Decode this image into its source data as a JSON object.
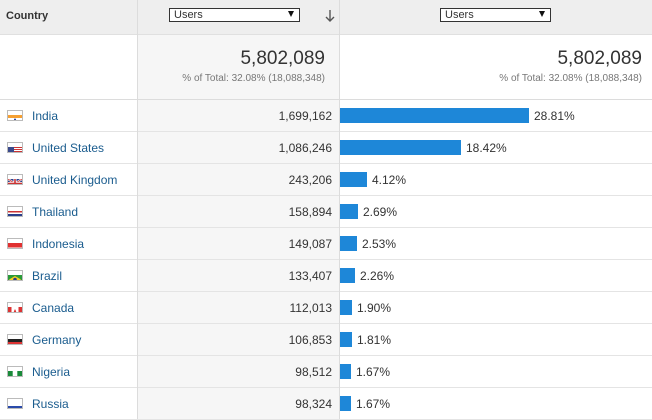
{
  "header": {
    "country_label": "Country",
    "primary_metric": "Users",
    "secondary_metric": "Users"
  },
  "totals": {
    "value": "5,802,089",
    "subtext": "% of Total: 32.08% (18,088,348)"
  },
  "rows": [
    {
      "country": "India",
      "users": "1,699,162",
      "percent": "28.81%",
      "share": 28.81,
      "flag": "india-flag-icon"
    },
    {
      "country": "United States",
      "users": "1,086,246",
      "percent": "18.42%",
      "share": 18.42,
      "flag": "us-flag-icon"
    },
    {
      "country": "United Kingdom",
      "users": "243,206",
      "percent": "4.12%",
      "share": 4.12,
      "flag": "uk-flag-icon"
    },
    {
      "country": "Thailand",
      "users": "158,894",
      "percent": "2.69%",
      "share": 2.69,
      "flag": "thailand-flag-icon"
    },
    {
      "country": "Indonesia",
      "users": "149,087",
      "percent": "2.53%",
      "share": 2.53,
      "flag": "indonesia-flag-icon"
    },
    {
      "country": "Brazil",
      "users": "133,407",
      "percent": "2.26%",
      "share": 2.26,
      "flag": "brazil-flag-icon"
    },
    {
      "country": "Canada",
      "users": "112,013",
      "percent": "1.90%",
      "share": 1.9,
      "flag": "canada-flag-icon"
    },
    {
      "country": "Germany",
      "users": "106,853",
      "percent": "1.81%",
      "share": 1.81,
      "flag": "germany-flag-icon"
    },
    {
      "country": "Nigeria",
      "users": "98,512",
      "percent": "1.67%",
      "share": 1.67,
      "flag": "nigeria-flag-icon"
    },
    {
      "country": "Russia",
      "users": "98,324",
      "percent": "1.67%",
      "share": 1.67,
      "flag": "russia-flag-icon"
    }
  ],
  "colors": {
    "bar": "#1e87d8",
    "link": "#1a5c8e",
    "header_bg": "#eeeeee"
  }
}
